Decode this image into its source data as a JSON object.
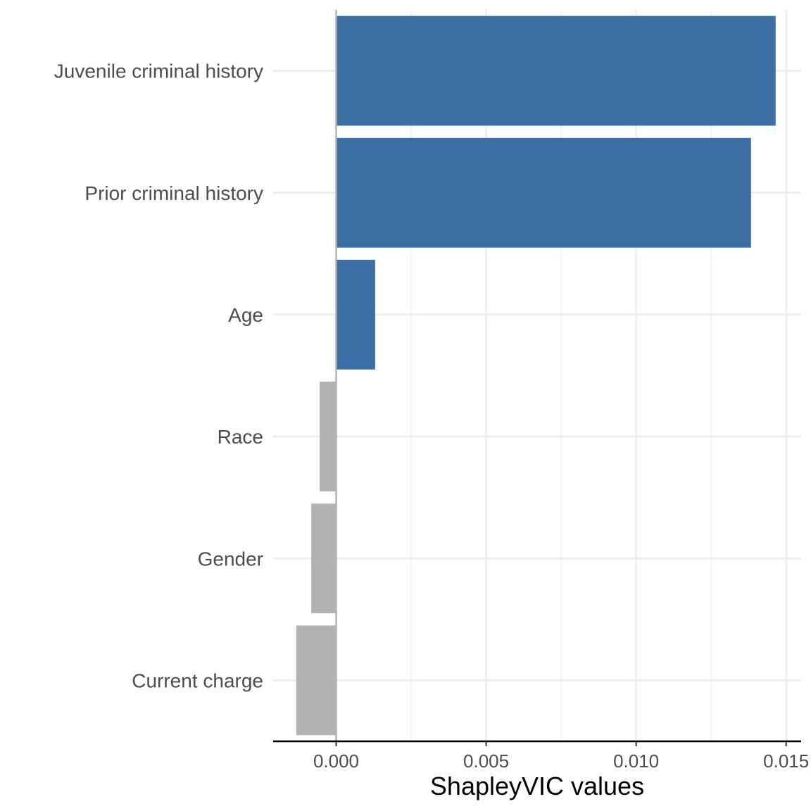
{
  "chart_data": {
    "type": "bar",
    "orientation": "horizontal",
    "categories": [
      "Juvenile criminal history",
      "Prior criminal history",
      "Age",
      "Race",
      "Gender",
      "Current charge"
    ],
    "values": [
      0.01465,
      0.01383,
      0.0013,
      -0.00055,
      -0.00083,
      -0.00133
    ],
    "xlabel": "ShapleyVIC values",
    "ylabel": "",
    "xlim": [
      -0.0021,
      0.0155
    ],
    "xticks": [
      0.0,
      0.005,
      0.01,
      0.015
    ],
    "xtick_labels": [
      "0.000",
      "0.005",
      "0.010",
      "0.015"
    ],
    "grid": true,
    "legend": "none",
    "colors": {
      "positive": "#3a6ea5",
      "negative": "#b2b2b2",
      "grid": "#ebebeb",
      "zero_line": "#b2b2b2",
      "axis": "#000000"
    }
  }
}
